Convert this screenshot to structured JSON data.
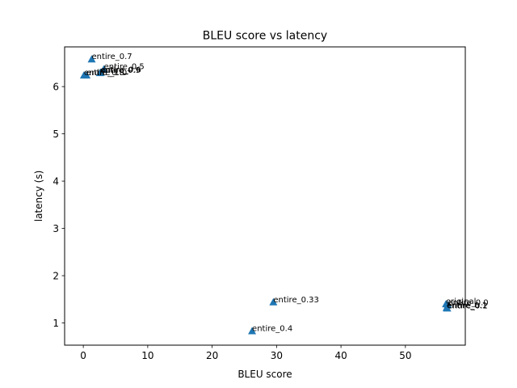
{
  "chart_data": {
    "type": "scatter",
    "title": "BLEU score vs latency",
    "xlabel": "BLEU score",
    "ylabel": "latency (s)",
    "xlim": [
      -2.9,
      59.3
    ],
    "ylim": [
      0.53,
      6.84
    ],
    "xticks": [
      0,
      10,
      20,
      30,
      40,
      50
    ],
    "yticks": [
      1,
      2,
      3,
      4,
      5,
      6
    ],
    "grid": false,
    "marker": "triangle",
    "color": "#1f77b4",
    "points": [
      {
        "label": "entire_0.7",
        "x": 1.3,
        "y": 6.58
      },
      {
        "label": "entire_0.5",
        "x": 3.2,
        "y": 6.37
      },
      {
        "label": "entire_0.6",
        "x": 2.7,
        "y": 6.3
      },
      {
        "label": "entire_0.9",
        "x": 2.6,
        "y": 6.29
      },
      {
        "label": "entire_0.8",
        "x": 0.1,
        "y": 6.24
      },
      {
        "label": "entire_1.0",
        "x": 0.5,
        "y": 6.24
      },
      {
        "label": "entire_0.33",
        "x": 29.5,
        "y": 1.44
      },
      {
        "label": "entire_0.4",
        "x": 26.2,
        "y": 0.83
      },
      {
        "label": "original",
        "x": 56.3,
        "y": 1.4
      },
      {
        "label": "entire_0.0",
        "x": 56.6,
        "y": 1.38
      },
      {
        "label": "entire_0.1",
        "x": 56.4,
        "y": 1.32
      },
      {
        "label": "entire_0.2",
        "x": 56.5,
        "y": 1.31
      }
    ]
  }
}
